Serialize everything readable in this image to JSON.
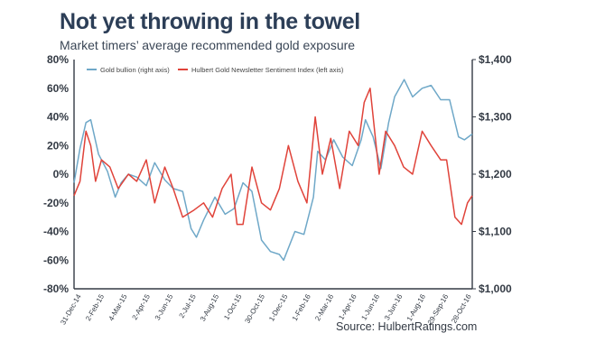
{
  "header": {
    "title": "Not yet throwing in the towel",
    "subtitle": "Market timers’ average recommended gold exposure"
  },
  "footer": {
    "source": "Source: HulbertRatings.com"
  },
  "colors": {
    "gold": "#6fa8c8",
    "sentiment": "#e0433a",
    "axis": "#333a44",
    "title": "#2c3e57"
  },
  "chart_data": {
    "type": "line",
    "legend_position": "top-left",
    "grid": false,
    "left_axis": {
      "ticks": [
        "80%",
        "60%",
        "40%",
        "20%",
        "0%",
        "-20%",
        "-40%",
        "-60%",
        "-80%"
      ],
      "ylim": [
        -80,
        80
      ],
      "unit": "%"
    },
    "right_axis": {
      "ticks": [
        "$1,400",
        "$1,300",
        "$1,200",
        "$1,100",
        "$1,000"
      ],
      "ylim": [
        1000,
        1400
      ],
      "unit": "$"
    },
    "x_ticks": [
      "31-Dec-14",
      "2-Feb-15",
      "4-Mar-15",
      "2-Apr-15",
      "3-Jun-15",
      "2-Jul-15",
      "3-Aug-15",
      "1-Oct-15",
      "30-Oct-15",
      "1-Dec-15",
      "1-Feb-16",
      "2-Mar-16",
      "1-Apr-16",
      "1-Jun-16",
      "3-Jun-16",
      "1-Aug-16",
      "29-Sep-16",
      "28-Oct-16"
    ],
    "series": [
      {
        "name": "Gold bullion (right axis)",
        "axis": "right",
        "x": [
          "2014-12-31",
          "2015-01-10",
          "2015-01-20",
          "2015-01-28",
          "2015-02-10",
          "2015-02-25",
          "2015-03-10",
          "2015-03-20",
          "2015-04-01",
          "2015-04-15",
          "2015-05-01",
          "2015-05-15",
          "2015-06-01",
          "2015-06-15",
          "2015-07-01",
          "2015-07-15",
          "2015-07-24",
          "2015-08-05",
          "2015-08-24",
          "2015-09-10",
          "2015-09-25",
          "2015-10-10",
          "2015-10-25",
          "2015-11-10",
          "2015-11-25",
          "2015-12-10",
          "2015-12-17",
          "2016-01-05",
          "2016-01-20",
          "2016-02-05",
          "2016-02-12",
          "2016-02-25",
          "2016-03-10",
          "2016-03-25",
          "2016-04-10",
          "2016-04-25",
          "2016-05-02",
          "2016-05-15",
          "2016-05-28",
          "2016-06-10",
          "2016-06-20",
          "2016-07-06",
          "2016-07-20",
          "2016-08-05",
          "2016-08-20",
          "2016-09-05",
          "2016-09-20",
          "2016-10-05",
          "2016-10-15",
          "2016-10-28"
        ],
        "values": [
          1185,
          1245,
          1290,
          1295,
          1235,
          1205,
          1160,
          1185,
          1200,
          1195,
          1180,
          1220,
          1190,
          1175,
          1170,
          1105,
          1090,
          1120,
          1160,
          1130,
          1140,
          1185,
          1170,
          1085,
          1065,
          1060,
          1050,
          1100,
          1095,
          1160,
          1240,
          1225,
          1260,
          1230,
          1215,
          1260,
          1295,
          1265,
          1210,
          1290,
          1335,
          1365,
          1335,
          1350,
          1355,
          1330,
          1330,
          1265,
          1260,
          1270
        ]
      },
      {
        "name": "Hulbert Gold Newsletter Sentiment Index (left axis)",
        "axis": "left",
        "x": [
          "2014-12-31",
          "2015-01-10",
          "2015-01-20",
          "2015-01-28",
          "2015-02-05",
          "2015-02-15",
          "2015-03-01",
          "2015-03-15",
          "2015-04-01",
          "2015-04-15",
          "2015-05-01",
          "2015-05-15",
          "2015-06-01",
          "2015-06-15",
          "2015-07-01",
          "2015-07-20",
          "2015-08-05",
          "2015-08-20",
          "2015-09-05",
          "2015-09-20",
          "2015-09-30",
          "2015-10-10",
          "2015-10-25",
          "2015-11-10",
          "2015-11-25",
          "2015-12-10",
          "2015-12-25",
          "2016-01-10",
          "2016-01-25",
          "2016-02-08",
          "2016-02-20",
          "2016-03-05",
          "2016-03-20",
          "2016-04-05",
          "2016-04-20",
          "2016-04-30",
          "2016-05-10",
          "2016-05-25",
          "2016-06-05",
          "2016-06-20",
          "2016-07-05",
          "2016-07-20",
          "2016-08-05",
          "2016-08-20",
          "2016-09-05",
          "2016-09-15",
          "2016-09-29",
          "2016-10-10",
          "2016-10-20",
          "2016-10-28"
        ],
        "values": [
          -15,
          -5,
          30,
          20,
          -5,
          10,
          5,
          -10,
          0,
          -5,
          10,
          -20,
          5,
          -10,
          -30,
          -25,
          -20,
          -30,
          -10,
          0,
          -35,
          -35,
          5,
          -20,
          -25,
          -10,
          20,
          -5,
          -20,
          40,
          0,
          25,
          -10,
          30,
          20,
          50,
          60,
          0,
          30,
          20,
          5,
          0,
          30,
          20,
          10,
          10,
          -30,
          -35,
          -20,
          -15
        ]
      }
    ]
  }
}
